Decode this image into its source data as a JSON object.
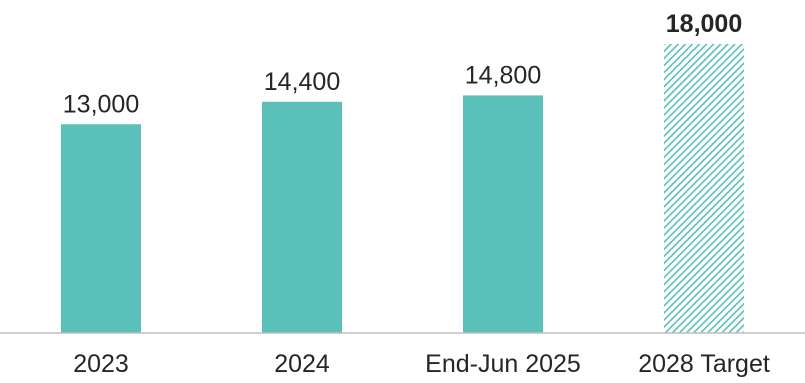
{
  "chart_data": {
    "type": "bar",
    "categories": [
      "2023",
      "2024",
      "End-Jun 2025",
      "2028 Target"
    ],
    "values": [
      13000,
      14400,
      14800,
      18000
    ],
    "data_labels": [
      "13,000",
      "14,400",
      "14,800",
      "18,000"
    ],
    "highlighted": [
      false,
      false,
      false,
      true
    ],
    "bar_styles": [
      "solid",
      "solid",
      "solid",
      "hatched"
    ],
    "ylim": [
      0,
      18000
    ],
    "grid": false,
    "legend": "none",
    "title": "",
    "xlabel": "",
    "ylabel": ""
  },
  "colors": {
    "bar": "#5BBFBA",
    "axis": "#BFBFBF",
    "text": "#262626",
    "background": "#FFFFFF"
  }
}
